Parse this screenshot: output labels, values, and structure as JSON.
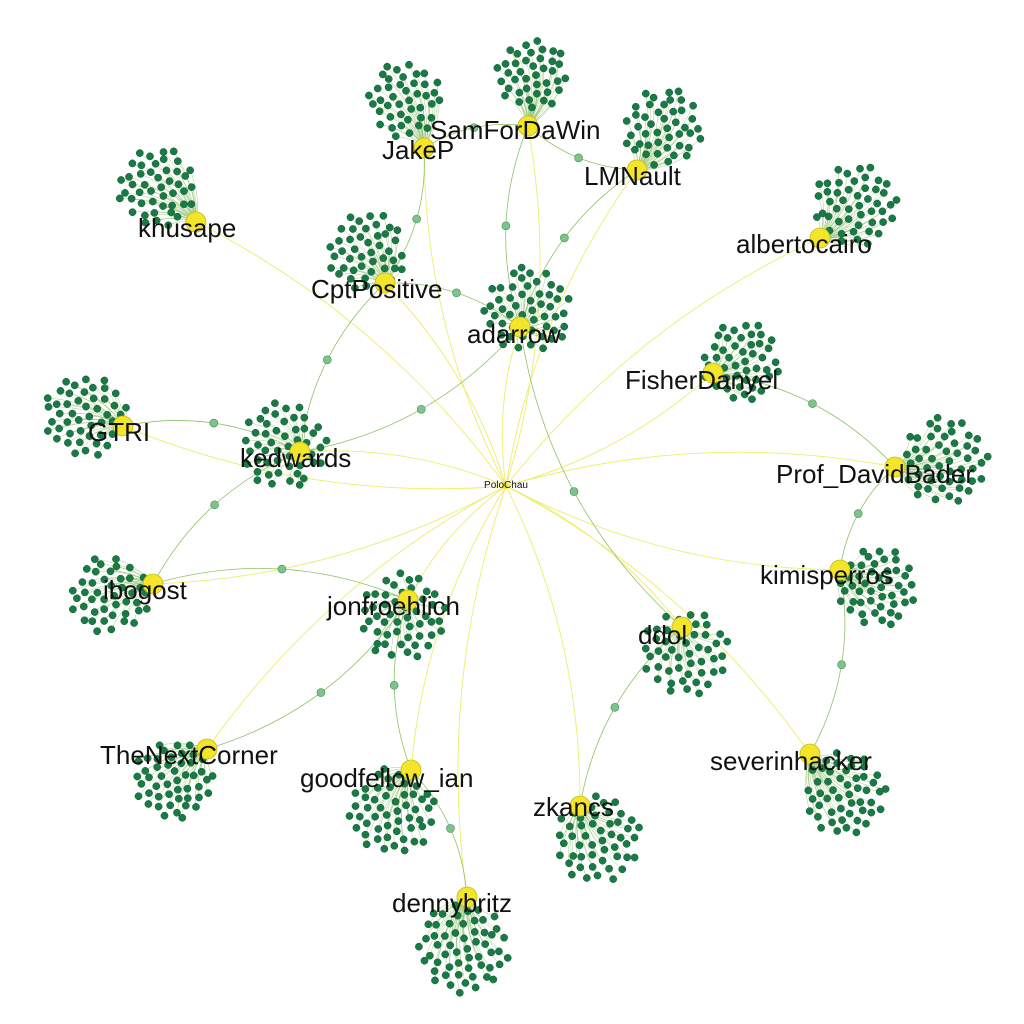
{
  "center": {
    "label": "PoloChau"
  },
  "hubs": [
    {
      "id": "jakep",
      "label": "JakeP"
    },
    {
      "id": "samfordawin",
      "label": "SamForDaWin"
    },
    {
      "id": "lmnault",
      "label": "LMNault"
    },
    {
      "id": "khusape",
      "label": "khusape"
    },
    {
      "id": "albertocairo",
      "label": "albertocairo"
    },
    {
      "id": "cptpositive",
      "label": "CptPositive"
    },
    {
      "id": "adarrow",
      "label": "adarrow"
    },
    {
      "id": "fisherdanyel",
      "label": "FisherDanyel"
    },
    {
      "id": "gtri",
      "label": "GTRI"
    },
    {
      "id": "kedwards",
      "label": "kedwards"
    },
    {
      "id": "prof_davidbader",
      "label": "Prof_DavidBader"
    },
    {
      "id": "kimisperros",
      "label": "kimisperros"
    },
    {
      "id": "ibogost",
      "label": "ibogost"
    },
    {
      "id": "jonfroehlich",
      "label": "jonfroehlich"
    },
    {
      "id": "ddol",
      "label": "ddol"
    },
    {
      "id": "thenextcorner",
      "label": "TheNextCorner"
    },
    {
      "id": "severinhacker",
      "label": "severinhacker"
    },
    {
      "id": "goodfellow_ian",
      "label": "goodfellow_ian"
    },
    {
      "id": "zkancs",
      "label": "zkancs"
    },
    {
      "id": "dennybritz",
      "label": "dennybritz"
    }
  ],
  "colors": {
    "hub": "#f2e52a",
    "leaf": "#1a7a45",
    "bridge": "#7dc48c",
    "edge_center": "#eded6a",
    "edge_leaf": "#8fc16a",
    "text": "#111111"
  }
}
